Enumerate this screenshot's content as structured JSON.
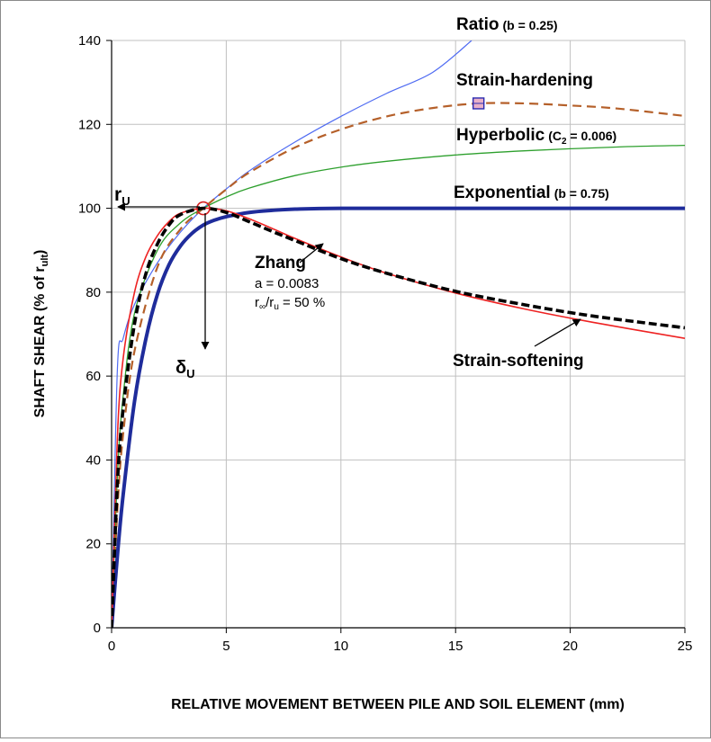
{
  "chart_data": {
    "type": "line",
    "xlabel": "RELATIVE MOVEMENT BETWEEN PILE AND SOIL ELEMENT  (mm)",
    "ylabel": "SHAFT SHEAR (% of r",
    "ylabel_sub": "ult",
    "ylabel_end": ")",
    "xlim": [
      0,
      25
    ],
    "ylim": [
      0,
      140
    ],
    "xticks": [
      0,
      5,
      10,
      15,
      20,
      25
    ],
    "yticks": [
      0,
      20,
      40,
      60,
      80,
      100,
      120,
      140
    ],
    "grid": true,
    "colors": {
      "ratio": "#4f6bf2",
      "hardening": "#b5602a",
      "hyperbolic": "#2ea02e",
      "exponential": "#1f2c9b",
      "zhang": "#000000",
      "softening": "#ee2222",
      "grid": "#c0c0c0",
      "marker": "#d42020",
      "hardening_marker": "#2a2ab0"
    },
    "series": [
      {
        "key": "ratio",
        "x": [
          0,
          0.25,
          0.5,
          1,
          2,
          3,
          4,
          5,
          6,
          8,
          10,
          12,
          14,
          15.7
        ],
        "y": [
          0,
          61.3,
          68.9,
          77.1,
          87.0,
          94.3,
          100.0,
          104.6,
          108.9,
          115.8,
          121.9,
          127.4,
          132.4,
          140.0
        ]
      },
      {
        "key": "hardening",
        "x": [
          0,
          0.25,
          0.5,
          1,
          2,
          3,
          4,
          5,
          6,
          8,
          10,
          12,
          14,
          16,
          18,
          20,
          22,
          25
        ],
        "y": [
          0,
          28.0,
          46.0,
          66.0,
          86.0,
          95.0,
          100.0,
          104.5,
          108.5,
          114.5,
          118.8,
          121.9,
          123.9,
          125.0,
          125.0,
          124.5,
          123.8,
          122.0
        ]
      },
      {
        "key": "hyperbolic",
        "x": [
          0,
          0.25,
          0.5,
          1,
          2,
          3,
          4,
          5,
          6,
          8,
          10,
          12,
          15,
          18,
          22,
          25
        ],
        "y": [
          0,
          36.0,
          55.0,
          75.0,
          90.0,
          96.5,
          100.0,
          102.7,
          104.8,
          107.8,
          109.8,
          111.2,
          112.7,
          113.7,
          114.6,
          115.0
        ]
      },
      {
        "key": "exponential",
        "x": [
          0,
          0.25,
          0.5,
          1,
          1.5,
          2,
          2.5,
          3,
          3.5,
          4,
          4.5,
          5,
          6,
          7,
          8,
          10,
          15,
          25
        ],
        "y": [
          0,
          17.0,
          31.5,
          54.0,
          69.0,
          79.5,
          86.5,
          91.0,
          94.0,
          96.0,
          97.2,
          98.0,
          99.0,
          99.5,
          99.8,
          100.0,
          100.0,
          100.0
        ]
      },
      {
        "key": "zhang",
        "x": [
          0,
          0.25,
          0.5,
          1,
          1.5,
          2,
          2.5,
          3,
          4,
          5,
          6,
          7,
          8,
          10,
          12,
          15,
          18,
          21,
          25
        ],
        "y": [
          0,
          34.0,
          52.0,
          72.5,
          84.5,
          91.5,
          96.0,
          98.5,
          100.0,
          99.0,
          96.8,
          94.5,
          92.3,
          88.0,
          84.5,
          80.2,
          77.0,
          74.3,
          71.5
        ]
      },
      {
        "key": "softening",
        "x": [
          0,
          0.25,
          0.5,
          1,
          1.5,
          2,
          2.5,
          3,
          4,
          5,
          6,
          7,
          8,
          10,
          12,
          15,
          18,
          21,
          25
        ],
        "y": [
          0,
          45.0,
          64.0,
          80.0,
          88.5,
          93.5,
          96.8,
          98.8,
          100.0,
          99.4,
          97.5,
          95.2,
          92.8,
          88.4,
          84.5,
          79.8,
          76.0,
          72.8,
          69.0
        ]
      }
    ],
    "markers": {
      "peak": {
        "x": 4,
        "y": 100
      },
      "hardening_peak": {
        "x": 16,
        "y": 125
      }
    },
    "labels": {
      "ratio": "Ratio",
      "ratio_param": "(b = 0.25)",
      "hardening": "Strain-hardening",
      "hyperbolic": "Hyperbolic",
      "hyperbolic_param_a": "(C",
      "hyperbolic_param_sub": "2",
      "hyperbolic_param_b": " = 0.006)",
      "exponential": "Exponential",
      "exponential_param": "(b = 0.75)",
      "zhang": "Zhang",
      "zhang_a": "a = 0.0083",
      "zhang_r_a": "r",
      "zhang_r_sub1": "∞",
      "zhang_r_b": "/r",
      "zhang_r_sub2": "u",
      "zhang_r_c": " = 50 %",
      "softening": "Strain-softening",
      "ru_main": "r",
      "ru_sub": "U",
      "du_main": "δ",
      "du_sub": "U"
    }
  }
}
